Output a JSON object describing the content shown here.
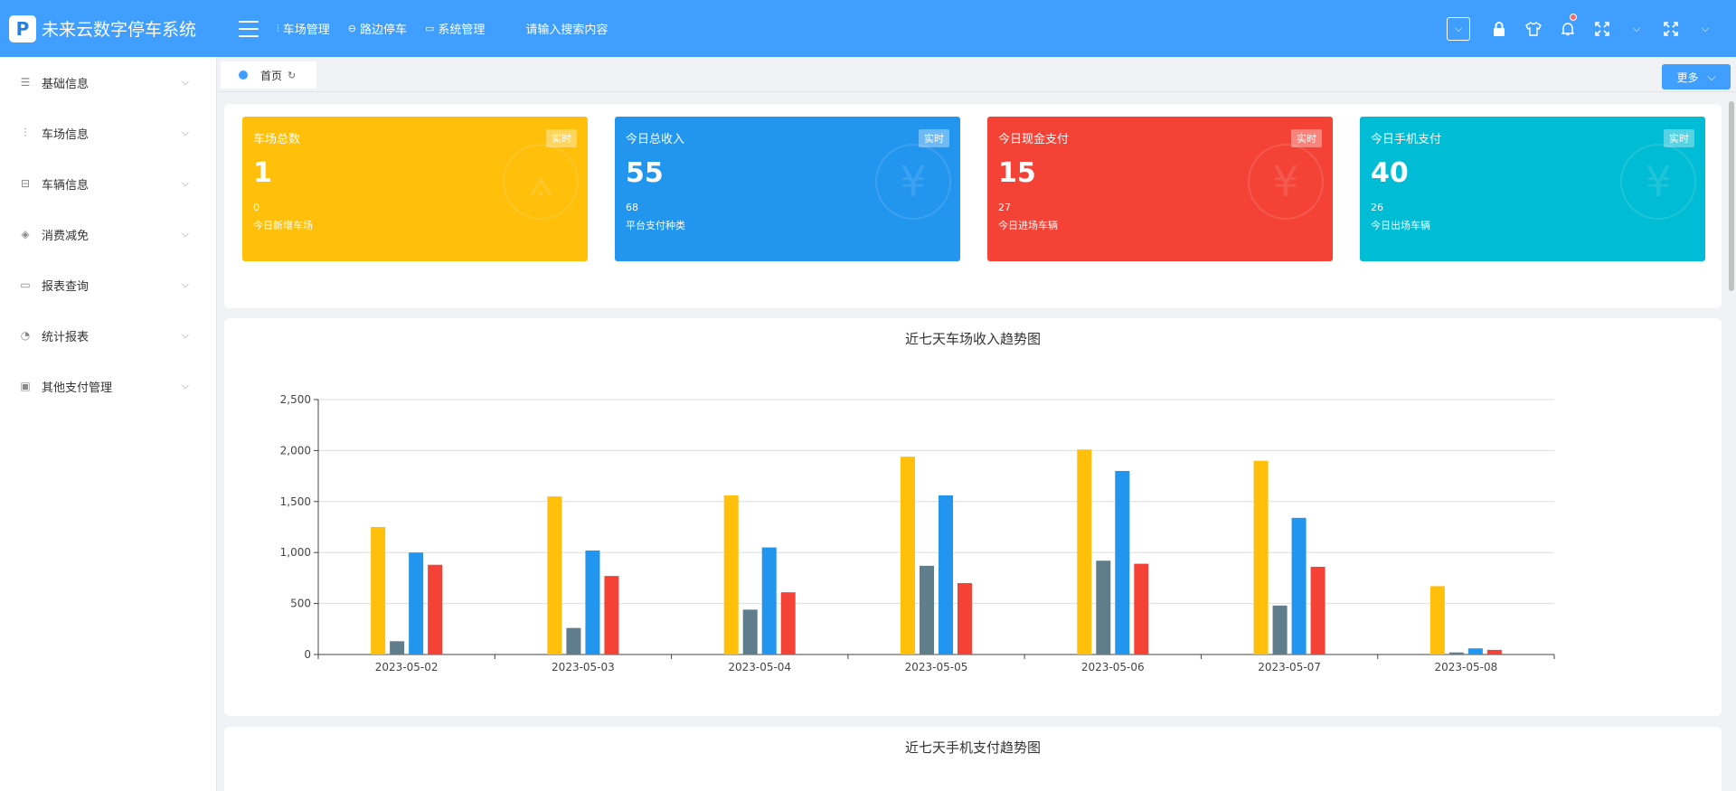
{
  "header": {
    "logo_letter": "P",
    "app_title": "未来云数字停车系统",
    "nav": [
      {
        "icon": "⫶",
        "label": "车场管理"
      },
      {
        "icon": "⊖",
        "label": "路边停车"
      },
      {
        "icon": "▭",
        "label": "系统管理"
      }
    ],
    "search_text": "请输入搜索内容"
  },
  "sidebar": {
    "items": [
      {
        "label": "基础信息",
        "icon": "☰"
      },
      {
        "label": "车场信息",
        "icon": "⫶"
      },
      {
        "label": "车辆信息",
        "icon": "⊟"
      },
      {
        "label": "消费减免",
        "icon": "◈"
      },
      {
        "label": "报表查询",
        "icon": "▭"
      },
      {
        "label": "统计报表",
        "icon": "◔"
      },
      {
        "label": "其他支付管理",
        "icon": "▣"
      }
    ]
  },
  "tabs": {
    "home_label": "首页",
    "more_label": "更多"
  },
  "cards": [
    {
      "title": "车场总数",
      "badge": "实时",
      "value": "1",
      "sub_value": "0",
      "sub_label": "今日新增车场",
      "color": "#ffbf0b"
    },
    {
      "title": "今日总收入",
      "badge": "实时",
      "value": "55",
      "sub_value": "68",
      "sub_label": "平台支付种类",
      "color": "#2295ef"
    },
    {
      "title": "今日现金支付",
      "badge": "实时",
      "value": "15",
      "sub_value": "27",
      "sub_label": "今日进场车辆",
      "color": "#f44236"
    },
    {
      "title": "今日手机支付",
      "badge": "实时",
      "value": "40",
      "sub_value": "26",
      "sub_label": "今日出场车辆",
      "color": "#00bcd4"
    }
  ],
  "chart_data": {
    "type": "bar",
    "title": "近七天车场收入趋势图",
    "categories": [
      "2023-05-02",
      "2023-05-03",
      "2023-05-04",
      "2023-05-05",
      "2023-05-06",
      "2023-05-07",
      "2023-05-08"
    ],
    "series": [
      {
        "values": [
          1250,
          1550,
          1560,
          1940,
          2010,
          1900,
          670
        ],
        "color": "#ffbf0b"
      },
      {
        "values": [
          130,
          260,
          440,
          870,
          920,
          480,
          20
        ],
        "color": "#607d8b"
      },
      {
        "values": [
          1000,
          1020,
          1050,
          1560,
          1800,
          1340,
          60
        ],
        "color": "#2295ef"
      },
      {
        "values": [
          880,
          770,
          610,
          700,
          890,
          860,
          45
        ],
        "color": "#f44236"
      }
    ],
    "ylim": [
      0,
      2500
    ],
    "yticks": [
      0,
      500,
      1000,
      1500,
      2000,
      2500
    ],
    "ytick_labels": [
      "0",
      "500",
      "1,000",
      "1,500",
      "2,000",
      "2,500"
    ],
    "grid": true
  },
  "chart2": {
    "title": "近七天手机支付趋势图"
  }
}
